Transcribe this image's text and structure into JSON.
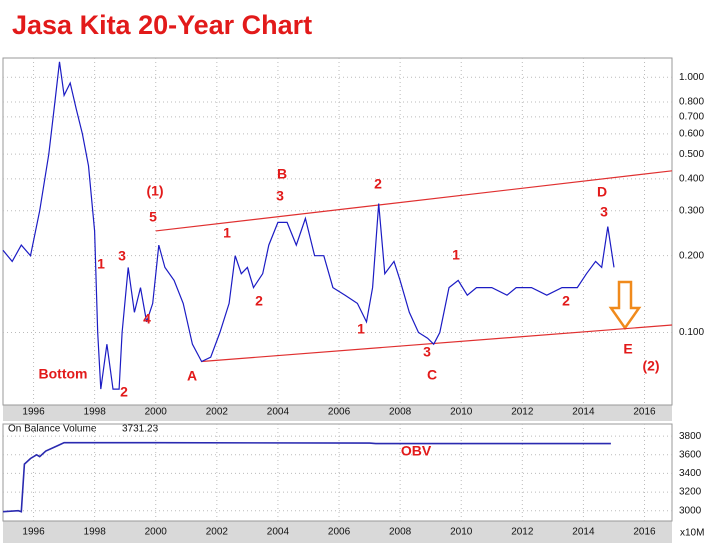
{
  "chart_data": [
    {
      "type": "line",
      "title": "Jasa Kita 20-Year Chart",
      "log_scale": true,
      "grid": true,
      "color": "#1c1cc4",
      "x": [
        1995.0,
        1995.3,
        1995.6,
        1995.9,
        1996.2,
        1996.5,
        1996.7,
        1996.85,
        1997.0,
        1997.2,
        1997.4,
        1997.6,
        1997.8,
        1998.0,
        1998.1,
        1998.2,
        1998.4,
        1998.6,
        1998.8,
        1998.9,
        1999.1,
        1999.3,
        1999.5,
        1999.7,
        1999.9,
        2000.1,
        2000.3,
        2000.6,
        2000.9,
        2001.2,
        2001.5,
        2001.8,
        2002.1,
        2002.4,
        2002.6,
        2002.8,
        2003.0,
        2003.2,
        2003.5,
        2003.7,
        2004.0,
        2004.3,
        2004.6,
        2004.9,
        2005.2,
        2005.5,
        2005.8,
        2006.2,
        2006.6,
        2006.9,
        2007.1,
        2007.3,
        2007.5,
        2007.8,
        2008.0,
        2008.3,
        2008.6,
        2008.9,
        2009.1,
        2009.3,
        2009.6,
        2009.9,
        2010.2,
        2010.5,
        2011.0,
        2011.5,
        2011.8,
        2012.3,
        2012.8,
        2013.3,
        2013.8,
        2014.1,
        2014.4,
        2014.6,
        2014.8,
        2015.0
      ],
      "values": [
        0.21,
        0.19,
        0.22,
        0.2,
        0.3,
        0.5,
        0.8,
        1.15,
        0.85,
        0.95,
        0.75,
        0.6,
        0.45,
        0.25,
        0.1,
        0.06,
        0.09,
        0.06,
        0.06,
        0.1,
        0.18,
        0.12,
        0.15,
        0.11,
        0.13,
        0.22,
        0.18,
        0.16,
        0.13,
        0.09,
        0.077,
        0.08,
        0.1,
        0.13,
        0.2,
        0.17,
        0.18,
        0.15,
        0.17,
        0.22,
        0.27,
        0.27,
        0.22,
        0.28,
        0.2,
        0.2,
        0.15,
        0.14,
        0.13,
        0.11,
        0.15,
        0.32,
        0.17,
        0.19,
        0.16,
        0.12,
        0.1,
        0.095,
        0.09,
        0.1,
        0.15,
        0.16,
        0.14,
        0.15,
        0.15,
        0.14,
        0.15,
        0.15,
        0.14,
        0.15,
        0.15,
        0.17,
        0.19,
        0.18,
        0.26,
        0.18
      ],
      "xlim": [
        1995.0,
        2016.9
      ],
      "ylim": [
        0.052,
        1.19
      ],
      "xticks": [
        1996,
        1998,
        2000,
        2002,
        2004,
        2006,
        2008,
        2010,
        2012,
        2014,
        2016
      ],
      "yticks": [
        {
          "value": 1.0,
          "label": "1.000"
        },
        {
          "value": 0.8,
          "label": "0.800"
        },
        {
          "value": 0.7,
          "label": "0.700"
        },
        {
          "value": 0.6,
          "label": "0.600"
        },
        {
          "value": 0.5,
          "label": "0.500"
        },
        {
          "value": 0.4,
          "label": "0.400"
        },
        {
          "value": 0.3,
          "label": "0.300"
        },
        {
          "value": 0.2,
          "label": "0.200"
        },
        {
          "value": 0.1,
          "label": "0.100"
        }
      ],
      "trendlines": [
        {
          "color": "#e03030",
          "x": [
            2000.0,
            2016.9
          ],
          "values": [
            0.25,
            0.43
          ]
        },
        {
          "color": "#e03030",
          "x": [
            2001.5,
            2016.9
          ],
          "values": [
            0.077,
            0.107
          ]
        }
      ],
      "annotations": [
        "(1)",
        "5",
        "1",
        "3",
        "4",
        "2",
        "Bottom",
        "A",
        "B",
        "3",
        "1",
        "2",
        "1",
        "2",
        "1",
        "3",
        "C",
        "2",
        "D",
        "3",
        "E",
        "(2)"
      ]
    },
    {
      "type": "line",
      "title": "On Balance Volume",
      "current_value": 3731.23,
      "annotations": [
        "OBV"
      ],
      "unit_label": "x10M",
      "color": "#2a2ab0",
      "x": [
        1995.0,
        1995.5,
        1995.6,
        1995.7,
        1995.9,
        1996.1,
        1996.2,
        1996.4,
        1996.8,
        1997.0,
        2000.0,
        2007.0,
        2007.2,
        2014.9
      ],
      "values": [
        2990,
        3000,
        2990,
        3500,
        3560,
        3600,
        3580,
        3640,
        3700,
        3730,
        3730,
        3725,
        3720,
        3720
      ],
      "xlim": [
        1995.0,
        2016.9
      ],
      "ylim": [
        2890,
        3930
      ],
      "xticks": [
        1996,
        1998,
        2000,
        2002,
        2004,
        2006,
        2008,
        2010,
        2012,
        2014,
        2016
      ],
      "yticks": [
        3000,
        3200,
        3400,
        3600,
        3800
      ]
    }
  ]
}
